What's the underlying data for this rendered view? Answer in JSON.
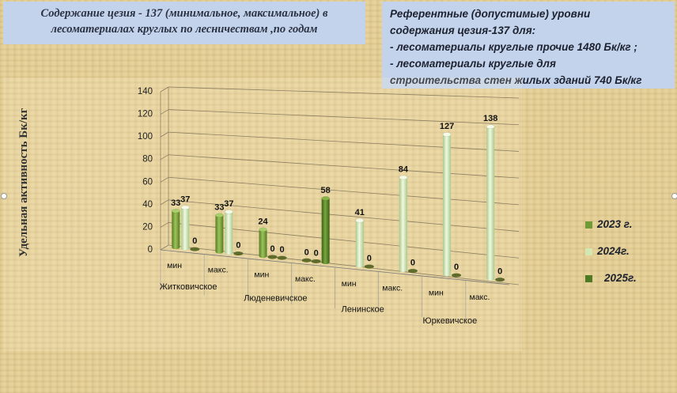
{
  "title_line1": "Содержание цезия - 137 (минимальное, максимальное) в",
  "title_line2": "лесоматериалах круглых  по лесничествам ,по годам",
  "reference": {
    "line1": "Референтные (допустимые) уровни",
    "line2": "содержания цезия-137 для:",
    "line3": "- лесоматериалы круглые прочие 1480 Бк/кг  ;",
    "line4": "- лесоматериалы круглые для",
    "line5": "строительства стен жилых зданий 740 Бк/кг"
  },
  "colors": {
    "s2023": "#6f9a35",
    "s2024": "#d3e7b2",
    "s2025": "#4e7a24"
  },
  "chart_data": {
    "type": "bar",
    "ylabel": "Удельная активность Бк/кг",
    "ylim": [
      0,
      140
    ],
    "yticks": [
      "0",
      "20",
      "40",
      "60",
      "80",
      "100",
      "120",
      "140"
    ],
    "categories": [
      "мин",
      "макс.",
      "мин",
      "макс.",
      "мин",
      "макс.",
      "мин",
      "макс."
    ],
    "groups": [
      "Житковичское",
      "Люденевичское",
      "Ленинское",
      "Юркевичское"
    ],
    "series": [
      {
        "name": "2023 г.",
        "values": [
          33,
          33,
          24,
          0,
          null,
          null,
          null,
          null
        ]
      },
      {
        "name": "2024г.",
        "values": [
          37,
          37,
          0,
          0,
          41,
          84,
          127,
          138
        ]
      },
      {
        "name": "2025г.",
        "values": [
          0,
          0,
          0,
          58,
          0,
          0,
          0,
          0
        ]
      }
    ],
    "legend_position": "right",
    "grid": true
  }
}
